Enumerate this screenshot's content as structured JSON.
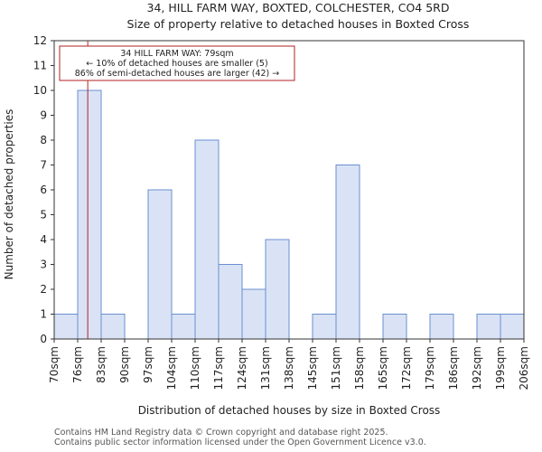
{
  "chart_data": {
    "type": "bar",
    "title": "34, HILL FARM WAY, BOXTED, COLCHESTER, CO4 5RD",
    "subtitle": "Size of property relative to detached houses in Boxted Cross",
    "xlabel": "Distribution of detached houses by size in Boxted Cross",
    "ylabel": "Number of detached properties",
    "x_tick_labels": [
      "70sqm",
      "76sqm",
      "83sqm",
      "90sqm",
      "97sqm",
      "104sqm",
      "110sqm",
      "117sqm",
      "124sqm",
      "131sqm",
      "138sqm",
      "145sqm",
      "151sqm",
      "158sqm",
      "165sqm",
      "172sqm",
      "179sqm",
      "186sqm",
      "192sqm",
      "199sqm",
      "206sqm"
    ],
    "bin_edges": [
      70,
      76,
      83,
      90,
      97,
      104,
      110,
      117,
      124,
      131,
      138,
      145,
      151,
      158,
      165,
      172,
      179,
      186,
      192,
      199,
      206
    ],
    "values": [
      1,
      10,
      1,
      0,
      6,
      1,
      8,
      3,
      2,
      4,
      0,
      1,
      7,
      0,
      1,
      0,
      1,
      0,
      1,
      1
    ],
    "ylim": [
      0,
      12
    ],
    "y_ticks": [
      0,
      1,
      2,
      3,
      4,
      5,
      6,
      7,
      8,
      9,
      10,
      11,
      12
    ],
    "grid": false,
    "bar_color": "#dae3f5",
    "bar_edge_color": "#6a8fd1",
    "marker": {
      "value": 79,
      "color": "#b22222",
      "annotation": [
        "34 HILL FARM WAY: 79sqm",
        "← 10% of detached houses are smaller (5)",
        "86% of semi-detached houses are larger (42) →"
      ]
    }
  },
  "footer": {
    "line1": "Contains HM Land Registry data © Crown copyright and database right 2025.",
    "line2": "Contains public sector information licensed under the Open Government Licence v3.0."
  }
}
